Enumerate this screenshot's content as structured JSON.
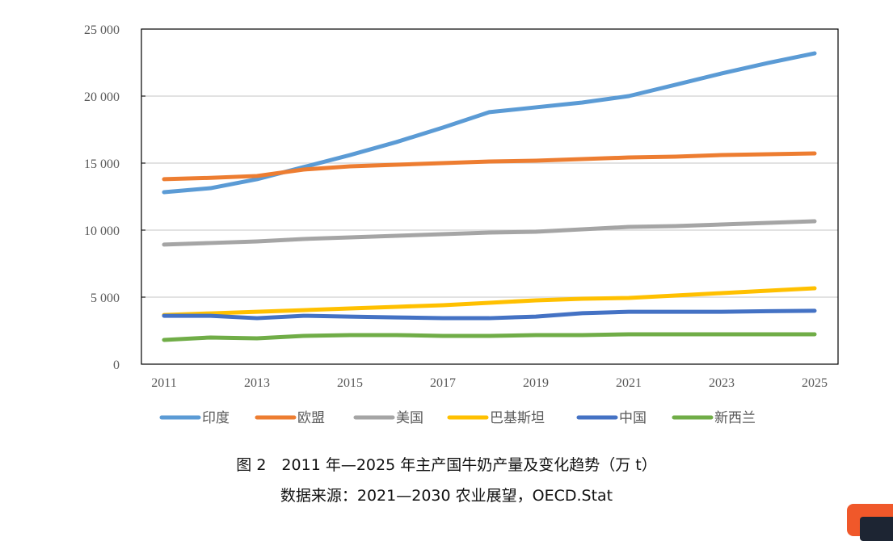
{
  "chart_data": {
    "type": "line",
    "x": [
      2011,
      2012,
      2013,
      2014,
      2015,
      2016,
      2017,
      2018,
      2019,
      2020,
      2021,
      2022,
      2023,
      2024,
      2025
    ],
    "xticks": [
      "2011",
      "2013",
      "2015",
      "2017",
      "2019",
      "2021",
      "2023",
      "2025"
    ],
    "yticks": [
      "0",
      "5 000",
      "10 000",
      "15 000",
      "20 000",
      "25 000"
    ],
    "ylim": [
      0,
      25000
    ],
    "grid": true,
    "legend": "bottom",
    "series": [
      {
        "name": "印度",
        "color": "#5b9bd5",
        "values": [
          12830,
          13130,
          13800,
          14700,
          15600,
          16570,
          17650,
          18800,
          19160,
          19520,
          20000,
          20840,
          21690,
          22470,
          23190
        ]
      },
      {
        "name": "欧盟",
        "color": "#ed7d31",
        "values": [
          13800,
          13900,
          14040,
          14520,
          14760,
          14880,
          15000,
          15120,
          15180,
          15300,
          15420,
          15480,
          15600,
          15660,
          15720
        ]
      },
      {
        "name": "美国",
        "color": "#a5a5a5",
        "values": [
          8920,
          9040,
          9160,
          9340,
          9460,
          9580,
          9700,
          9820,
          9880,
          10060,
          10240,
          10300,
          10420,
          10540,
          10660
        ]
      },
      {
        "name": "巴基斯坦",
        "color": "#ffc000",
        "values": [
          3670,
          3790,
          3910,
          4030,
          4160,
          4280,
          4400,
          4580,
          4760,
          4880,
          4940,
          5120,
          5300,
          5480,
          5660
        ]
      },
      {
        "name": "中国",
        "color": "#4472c4",
        "values": [
          3610,
          3610,
          3430,
          3610,
          3550,
          3490,
          3430,
          3430,
          3550,
          3800,
          3910,
          3910,
          3910,
          3950,
          3980
        ]
      },
      {
        "name": "新西兰",
        "color": "#70ad47",
        "values": [
          1810,
          1990,
          1930,
          2110,
          2170,
          2170,
          2110,
          2110,
          2170,
          2170,
          2230,
          2230,
          2230,
          2230,
          2230
        ]
      }
    ]
  },
  "caption": {
    "title": "图 2　2011 年—2025 年主产国牛奶产量及变化趋势（万 t）",
    "source": "数据来源：2021—2030 农业展望，OECD.Stat"
  }
}
